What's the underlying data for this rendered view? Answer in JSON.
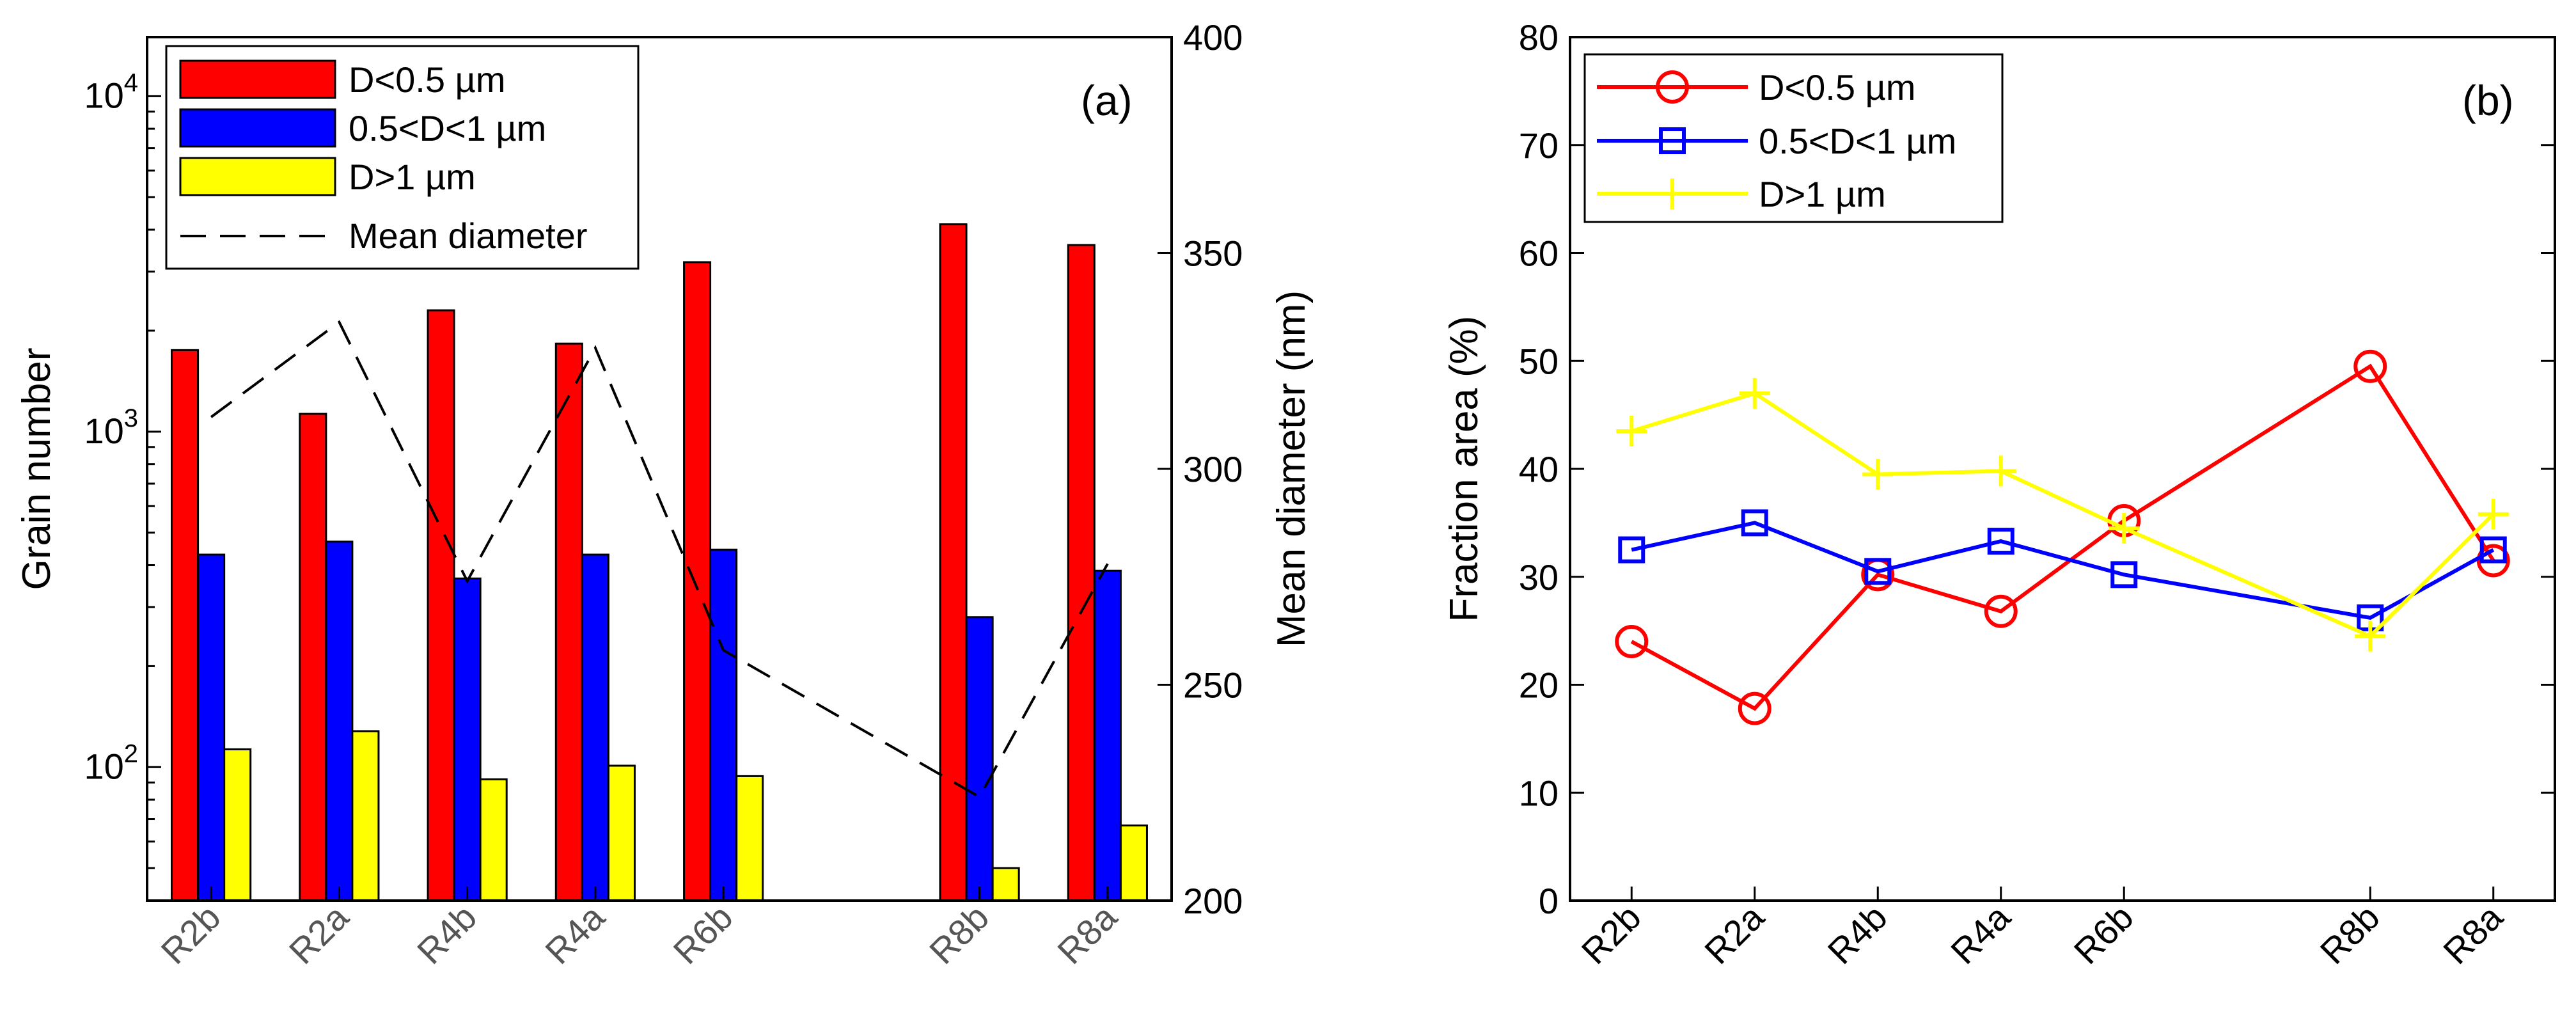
{
  "chart_data": [
    {
      "type": "bar",
      "panel_label": "(a)",
      "categories": [
        "R2b",
        "R2a",
        "R4b",
        "R4a",
        "R6b",
        "R8b",
        "R8a"
      ],
      "x_positions": [
        2,
        3,
        4,
        5,
        6,
        8,
        9
      ],
      "xlim": [
        1.5,
        9.5
      ],
      "ylabel_left": "Grain number",
      "ylabel_right": "Mean diameter (nm)",
      "yscale_left": "log",
      "ylim_left": [
        40,
        15000
      ],
      "yticks_left": [
        {
          "value": 100,
          "base": "10",
          "exp": "2"
        },
        {
          "value": 1000,
          "base": "10",
          "exp": "3"
        },
        {
          "value": 10000,
          "base": "10",
          "exp": "4"
        }
      ],
      "ylim_right": [
        200,
        400
      ],
      "yticks_right": [
        "200",
        "250",
        "300",
        "350",
        "400"
      ],
      "series": [
        {
          "name": "D<0.5 µm",
          "color": "#ff0000",
          "values": [
            1750,
            1130,
            2300,
            1830,
            3200,
            4150,
            3600
          ]
        },
        {
          "name": "0.5<D<1 µm",
          "color": "#0000ff",
          "values": [
            430,
            470,
            365,
            430,
            445,
            280,
            385
          ]
        },
        {
          "name": "D>1 µm",
          "color": "#ffff00",
          "values": [
            113,
            128,
            92,
            101,
            94,
            50,
            67
          ]
        }
      ],
      "line_series": {
        "name": "Mean diameter",
        "style": "dashed",
        "color": "#000000",
        "axis": "right",
        "values": [
          312,
          334,
          274,
          328,
          258,
          224,
          278
        ]
      },
      "legend": {
        "position": "top-left"
      }
    },
    {
      "type": "line",
      "panel_label": "(b)",
      "categories": [
        "R2b",
        "R2a",
        "R4b",
        "R4a",
        "R6b",
        "R8b",
        "R8a"
      ],
      "x_positions": [
        2,
        3,
        4,
        5,
        6,
        8,
        9
      ],
      "xlim": [
        1.5,
        9.5
      ],
      "ylabel": "Fraction area (%)",
      "ylim": [
        0,
        80
      ],
      "yticks": [
        "0",
        "10",
        "20",
        "30",
        "40",
        "50",
        "60",
        "70",
        "80"
      ],
      "series": [
        {
          "name": "D<0.5 µm",
          "color": "#ff0000",
          "marker": "circle",
          "values": [
            24.0,
            17.8,
            30.2,
            26.8,
            35.2,
            49.5,
            31.5
          ]
        },
        {
          "name": "0.5<D<1 µm",
          "color": "#0000ff",
          "marker": "square",
          "values": [
            32.5,
            35.0,
            30.5,
            33.3,
            30.2,
            26.2,
            32.5
          ]
        },
        {
          "name": "D>1 µm",
          "color": "#ffff00",
          "marker": "plus",
          "values": [
            43.5,
            47.0,
            39.5,
            39.8,
            34.5,
            24.5,
            35.8
          ]
        }
      ],
      "legend": {
        "position": "top-left"
      }
    }
  ]
}
